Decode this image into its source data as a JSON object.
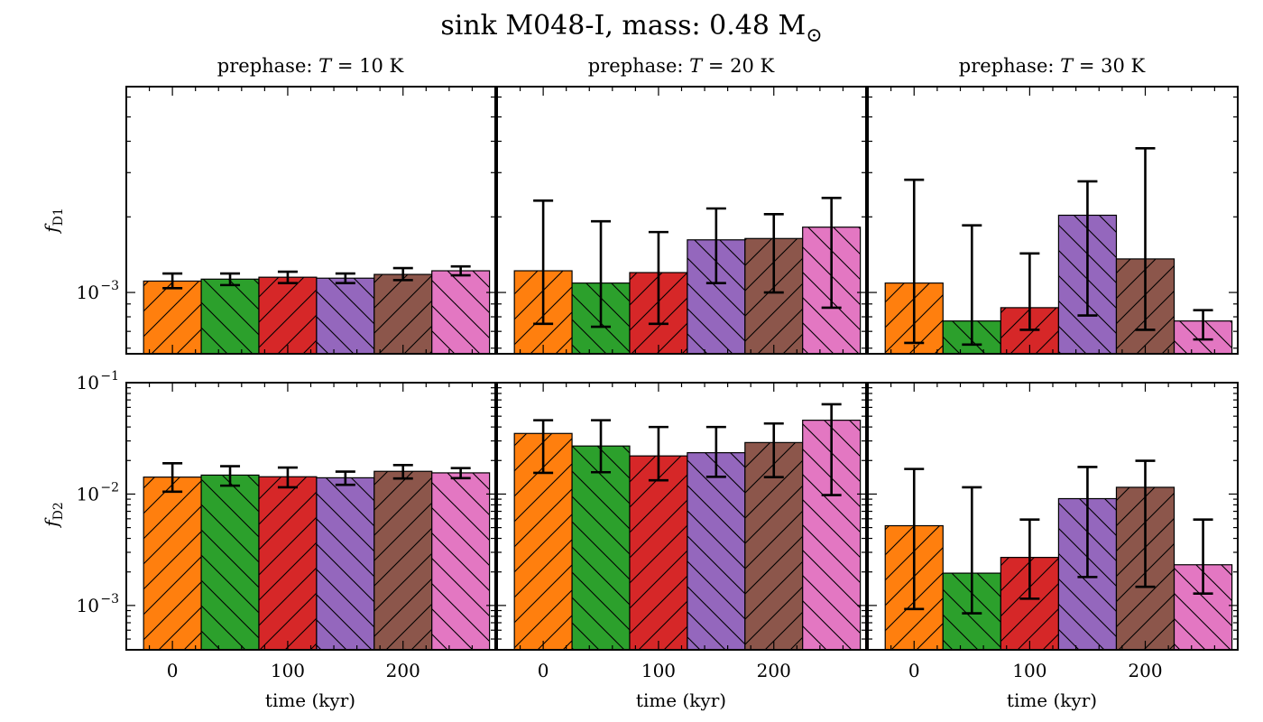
{
  "figure": {
    "title": "sink M048-I, mass: 0.48 M",
    "title_symbol": "⊙",
    "xlabel": "time (kyr)",
    "row_labels": [
      {
        "symbol": "f",
        "subscript": "D1"
      },
      {
        "symbol": "f",
        "subscript": "D2"
      }
    ],
    "column_titles": [
      {
        "prefix": "prephase: ",
        "var": "T",
        "suffix": " = 10 K"
      },
      {
        "prefix": "prephase: ",
        "var": "T",
        "suffix": " = 20 K"
      },
      {
        "prefix": "prephase: ",
        "var": "T",
        "suffix": " = 30 K"
      }
    ]
  },
  "chart_data": [
    {
      "type": "bar",
      "panel": "top-left",
      "prephase_T": "10 K",
      "y_quantity": "f_D1",
      "x": [
        0,
        50,
        100,
        150,
        200,
        250
      ],
      "xticks": [
        {
          "value": 0,
          "label": "0"
        },
        {
          "value": 100,
          "label": "100"
        },
        {
          "value": 200,
          "label": "200"
        }
      ],
      "xlim": [
        -40,
        280
      ],
      "y_scale": "log",
      "ylim": [
        0.00057,
        0.0066
      ],
      "yticks": [
        {
          "value": 0.001,
          "base": "10",
          "exp": "−3"
        }
      ],
      "values": [
        0.00111,
        0.00113,
        0.00115,
        0.00114,
        0.00118,
        0.00122
      ],
      "errors_low": [
        0.00104,
        0.00107,
        0.00109,
        0.00109,
        0.00112,
        0.00117
      ],
      "errors_high": [
        0.00119,
        0.00119,
        0.00121,
        0.00119,
        0.00125,
        0.00127
      ]
    },
    {
      "type": "bar",
      "panel": "top-middle",
      "prephase_T": "20 K",
      "y_quantity": "f_D1",
      "x": [
        0,
        50,
        100,
        150,
        200,
        250
      ],
      "xticks": [
        {
          "value": 0,
          "label": "0"
        },
        {
          "value": 100,
          "label": "100"
        },
        {
          "value": 200,
          "label": "200"
        }
      ],
      "xlim": [
        -40,
        280
      ],
      "y_scale": "log",
      "ylim": [
        0.00057,
        0.0066
      ],
      "yticks": [
        {
          "value": 0.001,
          "base": "10",
          "exp": "−3"
        }
      ],
      "values": [
        0.00122,
        0.00109,
        0.0012,
        0.00162,
        0.00164,
        0.00182
      ],
      "errors_low": [
        0.00075,
        0.00073,
        0.00075,
        0.00109,
        0.001,
        0.00087
      ],
      "errors_high": [
        0.00232,
        0.00192,
        0.00174,
        0.00216,
        0.00205,
        0.00238
      ]
    },
    {
      "type": "bar",
      "panel": "top-right",
      "prephase_T": "30 K",
      "y_quantity": "f_D1",
      "x": [
        0,
        50,
        100,
        150,
        200,
        250
      ],
      "xticks": [
        {
          "value": 0,
          "label": "0"
        },
        {
          "value": 100,
          "label": "100"
        },
        {
          "value": 200,
          "label": "200"
        }
      ],
      "xlim": [
        -40,
        280
      ],
      "y_scale": "log",
      "ylim": [
        0.00057,
        0.0066
      ],
      "yticks": [
        {
          "value": 0.001,
          "base": "10",
          "exp": "−3"
        }
      ],
      "values": [
        0.00109,
        0.00077,
        0.00087,
        0.00203,
        0.00136,
        0.00077
      ],
      "errors_low": [
        0.00063,
        0.00062,
        0.00071,
        0.00081,
        0.00071,
        0.00065
      ],
      "errors_high": [
        0.00281,
        0.00185,
        0.00143,
        0.00277,
        0.00375,
        0.00085
      ]
    },
    {
      "type": "bar",
      "panel": "bottom-left",
      "prephase_T": "10 K",
      "y_quantity": "f_D2",
      "x": [
        0,
        50,
        100,
        150,
        200,
        250
      ],
      "xticks": [
        {
          "value": 0,
          "label": "0"
        },
        {
          "value": 100,
          "label": "100"
        },
        {
          "value": 200,
          "label": "200"
        }
      ],
      "xlim": [
        -40,
        280
      ],
      "y_scale": "log",
      "ylim": [
        0.0004,
        0.1
      ],
      "yticks": [
        {
          "value": 0.001,
          "base": "10",
          "exp": "−3"
        },
        {
          "value": 0.01,
          "base": "10",
          "exp": "−2"
        },
        {
          "value": 0.1,
          "base": "10",
          "exp": "−1"
        }
      ],
      "values": [
        0.0142,
        0.0148,
        0.0143,
        0.014,
        0.016,
        0.0155
      ],
      "errors_low": [
        0.0105,
        0.0119,
        0.0115,
        0.0121,
        0.0138,
        0.0139
      ],
      "errors_high": [
        0.0189,
        0.0178,
        0.0173,
        0.0159,
        0.0182,
        0.0171
      ]
    },
    {
      "type": "bar",
      "panel": "bottom-middle",
      "prephase_T": "20 K",
      "y_quantity": "f_D2",
      "x": [
        0,
        50,
        100,
        150,
        200,
        250
      ],
      "xticks": [
        {
          "value": 0,
          "label": "0"
        },
        {
          "value": 100,
          "label": "100"
        },
        {
          "value": 200,
          "label": "200"
        }
      ],
      "xlim": [
        -40,
        280
      ],
      "y_scale": "log",
      "ylim": [
        0.0004,
        0.1
      ],
      "yticks": [
        {
          "value": 0.001,
          "base": "10",
          "exp": "−3"
        },
        {
          "value": 0.01,
          "base": "10",
          "exp": "−2"
        },
        {
          "value": 0.1,
          "base": "10",
          "exp": "−1"
        }
      ],
      "values": [
        0.035,
        0.027,
        0.022,
        0.0235,
        0.029,
        0.046
      ],
      "errors_low": [
        0.0155,
        0.0157,
        0.0133,
        0.0143,
        0.0142,
        0.0098
      ],
      "errors_high": [
        0.046,
        0.046,
        0.04,
        0.04,
        0.043,
        0.064
      ]
    },
    {
      "type": "bar",
      "panel": "bottom-right",
      "prephase_T": "30 K",
      "y_quantity": "f_D2",
      "x": [
        0,
        50,
        100,
        150,
        200,
        250
      ],
      "xticks": [
        {
          "value": 0,
          "label": "0"
        },
        {
          "value": 100,
          "label": "100"
        },
        {
          "value": 200,
          "label": "200"
        }
      ],
      "xlim": [
        -40,
        280
      ],
      "y_scale": "log",
      "ylim": [
        0.0004,
        0.1
      ],
      "yticks": [
        {
          "value": 0.001,
          "base": "10",
          "exp": "−3"
        },
        {
          "value": 0.01,
          "base": "10",
          "exp": "−2"
        },
        {
          "value": 0.1,
          "base": "10",
          "exp": "−1"
        }
      ],
      "values": [
        0.0052,
        0.00195,
        0.0027,
        0.0091,
        0.0115,
        0.00232
      ],
      "errors_low": [
        0.00093,
        0.00085,
        0.00115,
        0.0018,
        0.00147,
        0.00128
      ],
      "errors_high": [
        0.0168,
        0.0115,
        0.0059,
        0.0175,
        0.0199,
        0.0059
      ]
    }
  ],
  "style": {
    "bar_colors": [
      "#ff7f0e",
      "#2ca02c",
      "#d62728",
      "#9467bd",
      "#8c564b",
      "#e377c2"
    ],
    "hatch_patterns": [
      "forward-diagonal",
      "back-diagonal",
      "forward-diagonal",
      "back-diagonal",
      "forward-diagonal",
      "back-diagonal"
    ],
    "error_bar_color": "#000000",
    "bar_edge_color": "#000000"
  }
}
